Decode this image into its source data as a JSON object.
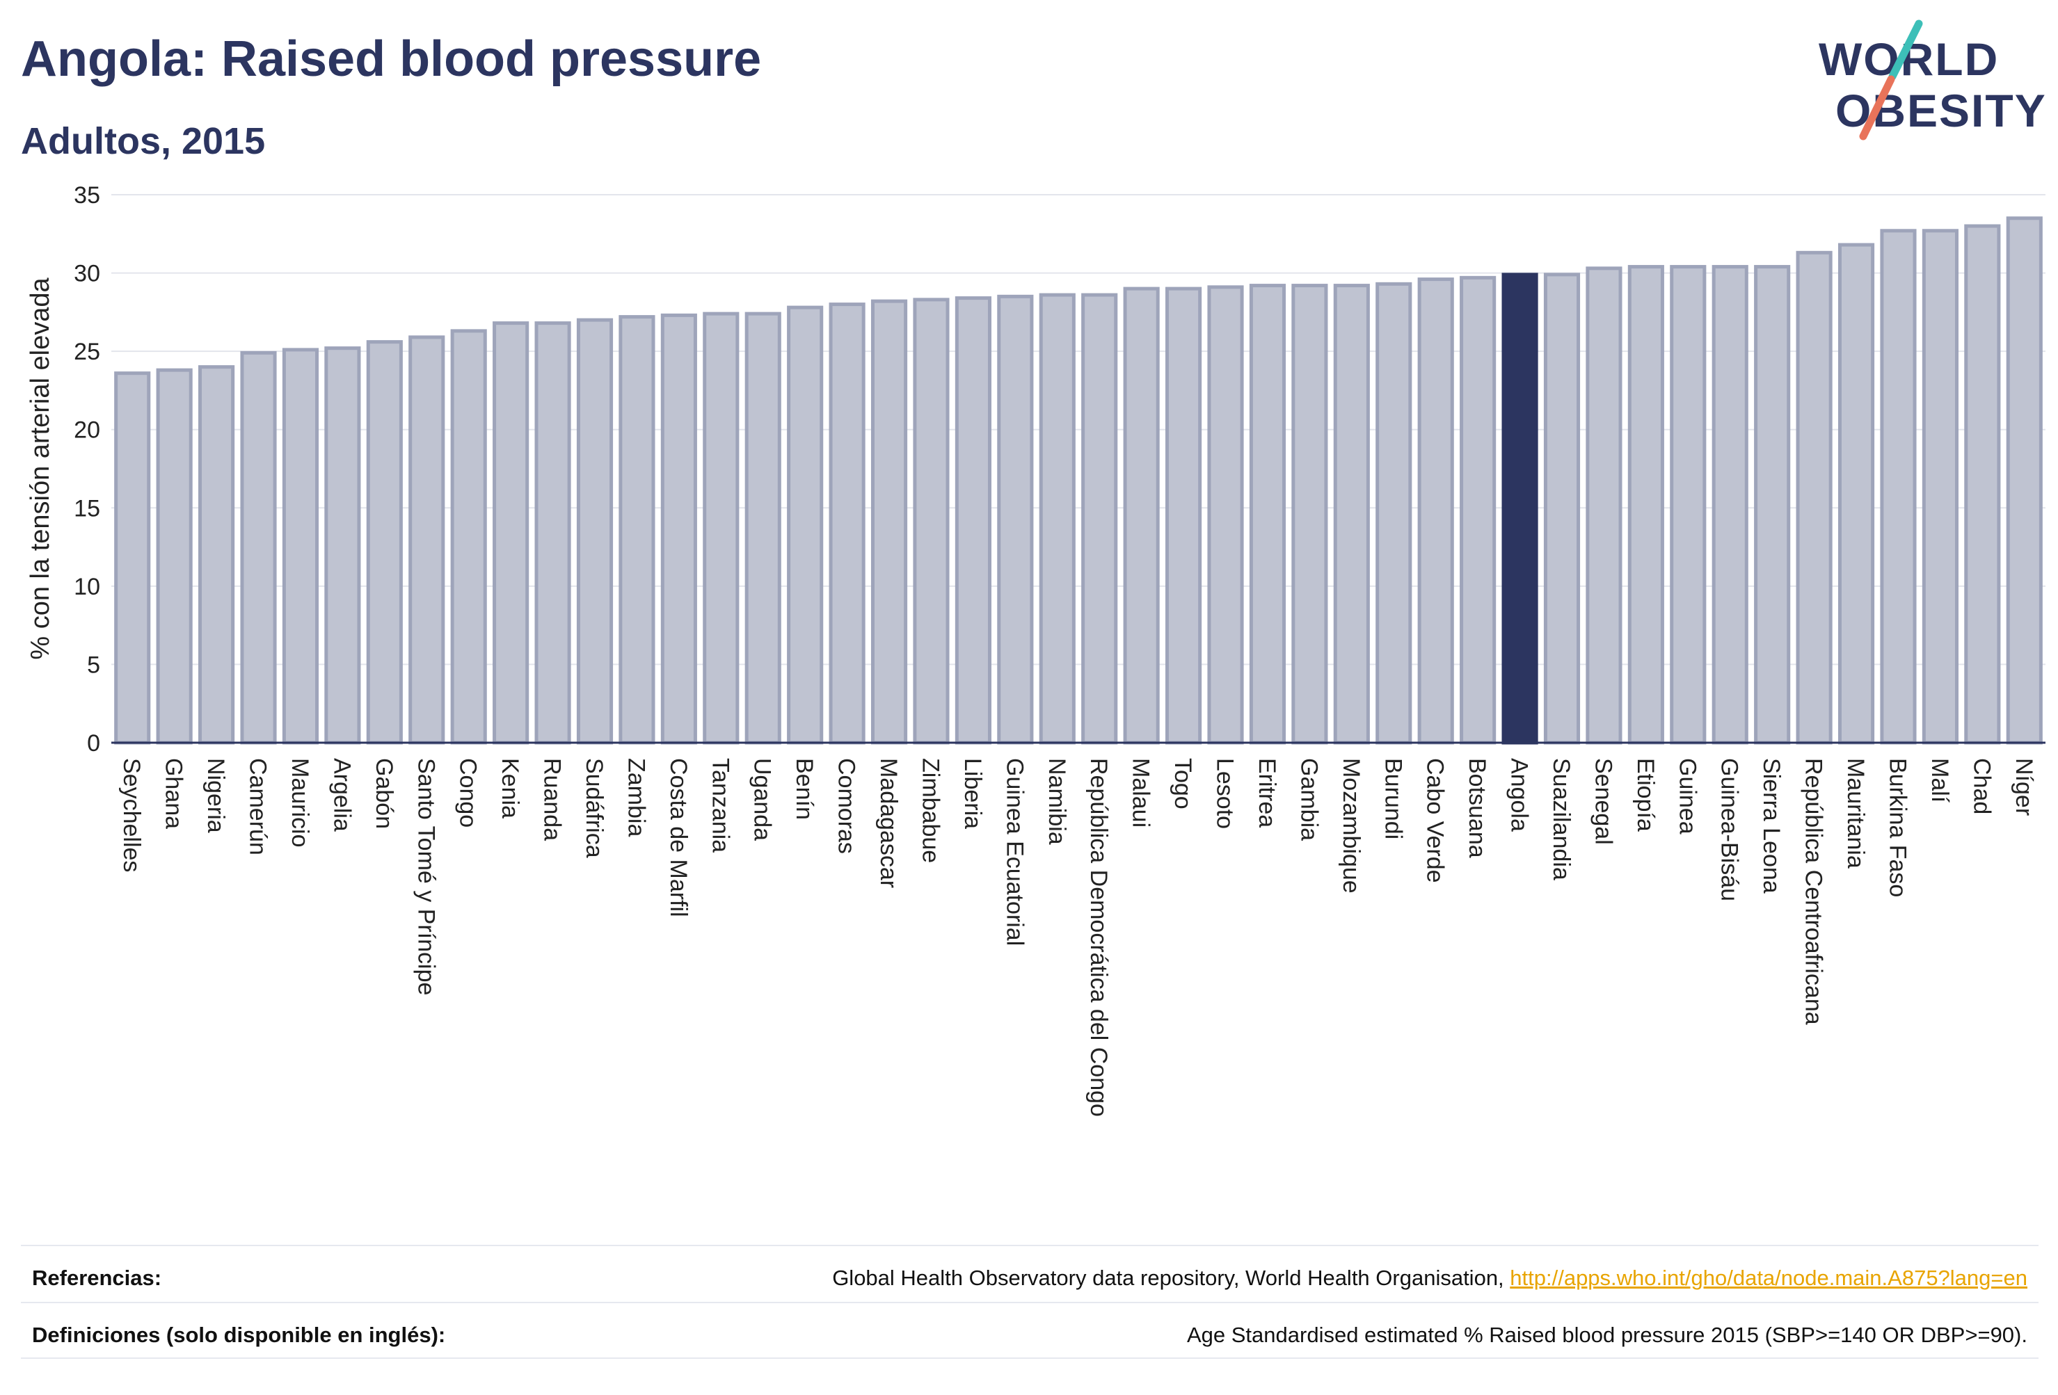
{
  "header": {
    "title": "Angola: Raised blood pressure",
    "subtitle": "Adultos, 2015"
  },
  "logo": {
    "line1": "WORLD",
    "line2": "OBESITY",
    "accent_teal": "#3dbfb8",
    "accent_coral": "#e8735a",
    "text_color": "#2c3560"
  },
  "colors": {
    "bar_default": "#bfc3d1",
    "bar_border": "#9ea4ba",
    "bar_highlight": "#2c3560",
    "grid": "#e3e5ec"
  },
  "chart_data": {
    "type": "bar",
    "ylabel": "% con la tensión arterial elevada",
    "ylim": [
      0,
      35
    ],
    "yticks": [
      0,
      5,
      10,
      15,
      20,
      25,
      30,
      35
    ],
    "grid": true,
    "highlight": "Angola",
    "categories": [
      "Seychelles",
      "Ghana",
      "Nigeria",
      "Camerún",
      "Mauricio",
      "Argelia",
      "Gabón",
      "Santo Tomé y Príncipe",
      "Congo",
      "Kenia",
      "Ruanda",
      "Sudáfrica",
      "Zambia",
      "Costa de Marfil",
      "Tanzania",
      "Uganda",
      "Benín",
      "Comoras",
      "Madagascar",
      "Zimbabue",
      "Liberia",
      "Guinea Ecuatorial",
      "Namibia",
      "República Democrática del Congo",
      "Malaui",
      "Togo",
      "Lesoto",
      "Eritrea",
      "Gambia",
      "Mozambique",
      "Burundi",
      "Cabo Verde",
      "Botsuana",
      "Angola",
      "Suazilandia",
      "Senegal",
      "Etiopía",
      "Guinea",
      "Guinea-Bisáu",
      "Sierra Leona",
      "República Centroafricana",
      "Mauritania",
      "Burkina Faso",
      "Malí",
      "Chad",
      "Níger"
    ],
    "values": [
      23.6,
      23.8,
      24.0,
      24.9,
      25.1,
      25.2,
      25.6,
      25.9,
      26.3,
      26.8,
      26.8,
      27.0,
      27.2,
      27.3,
      27.4,
      27.4,
      27.8,
      28.0,
      28.2,
      28.3,
      28.4,
      28.5,
      28.6,
      28.6,
      29.0,
      29.0,
      29.1,
      29.2,
      29.2,
      29.2,
      29.3,
      29.6,
      29.7,
      29.9,
      29.9,
      30.3,
      30.4,
      30.4,
      30.4,
      30.4,
      31.3,
      31.8,
      32.7,
      32.7,
      33.0,
      33.5
    ]
  },
  "footer": {
    "references_label": "Referencias:",
    "references_text": "Global Health Observatory data repository, World Health Organisation, ",
    "references_link": "http://apps.who.int/gho/data/node.main.A875?lang=en",
    "definitions_label": "Definiciones (solo disponible en inglés):",
    "definitions_text": "Age Standardised estimated % Raised blood pressure 2015 (SBP>=140 OR DBP>=90)."
  }
}
